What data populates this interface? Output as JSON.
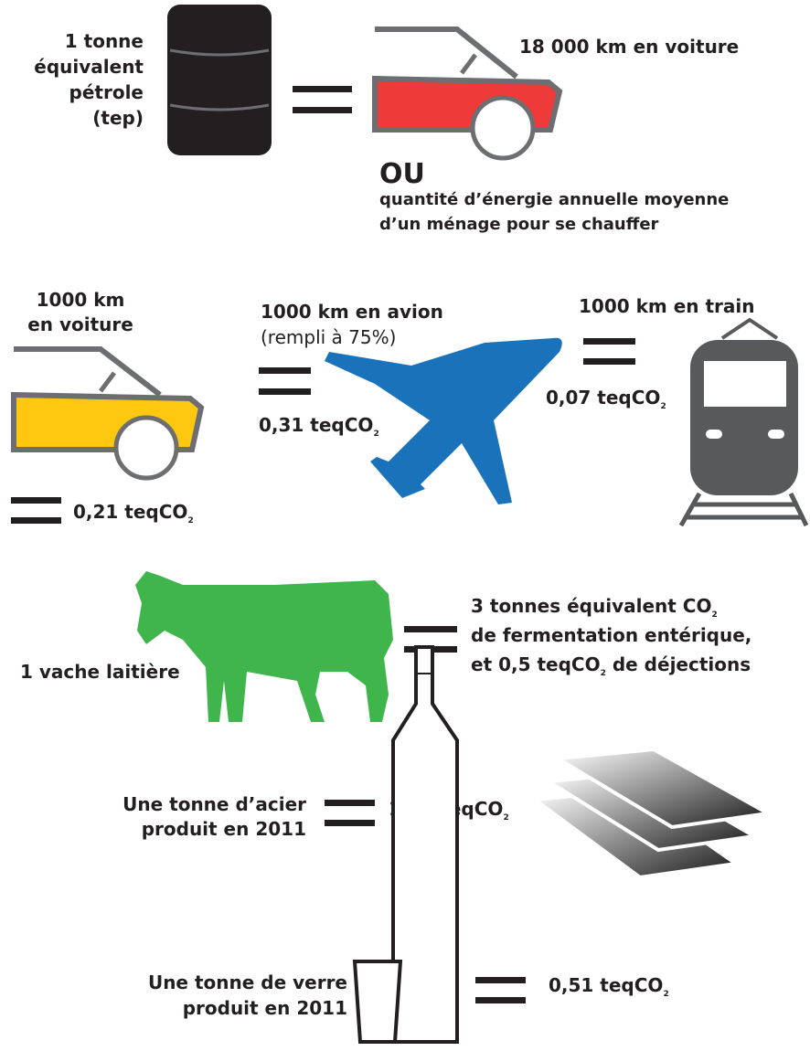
{
  "tep": {
    "label": [
      "1 tonne",
      "équivalent",
      "pétrole",
      "(tep)"
    ],
    "car": "18 000 km en voiture",
    "or": "OU",
    "heating": [
      "quantité d’énergie annuelle moyenne",
      "d’un ménage pour se chauffer"
    ]
  },
  "car": {
    "label": [
      "1000 km",
      "en voiture"
    ],
    "value": {
      "text": "0,21 teqCO",
      "sub": "2"
    }
  },
  "plane": {
    "label": "1000 km en avion",
    "note": "(rempli à 75%)",
    "value": {
      "text": "0,31 teqCO",
      "sub": "2"
    }
  },
  "train": {
    "label": "1000 km en train",
    "value": {
      "text": "0,07 teqCO",
      "sub": "2"
    }
  },
  "cow": {
    "label": "1 vache laitière",
    "value": [
      {
        "text": "3 tonnes équivalent CO",
        "sub": "2"
      },
      {
        "text": "de fermentation entérique,"
      },
      {
        "text": "et 0,5 teqCO",
        "sub": "2",
        "rest": " de déjections"
      }
    ]
  },
  "steel": {
    "label": [
      "Une tonne d’acier",
      "produit en 2011"
    ],
    "value": {
      "text": "1,32 teqCO",
      "sub": "2"
    }
  },
  "glass": {
    "label": [
      "Une tonne de verre",
      "produit en 2011"
    ],
    "value": {
      "text": "0,51 teqCO",
      "sub": "2"
    }
  }
}
